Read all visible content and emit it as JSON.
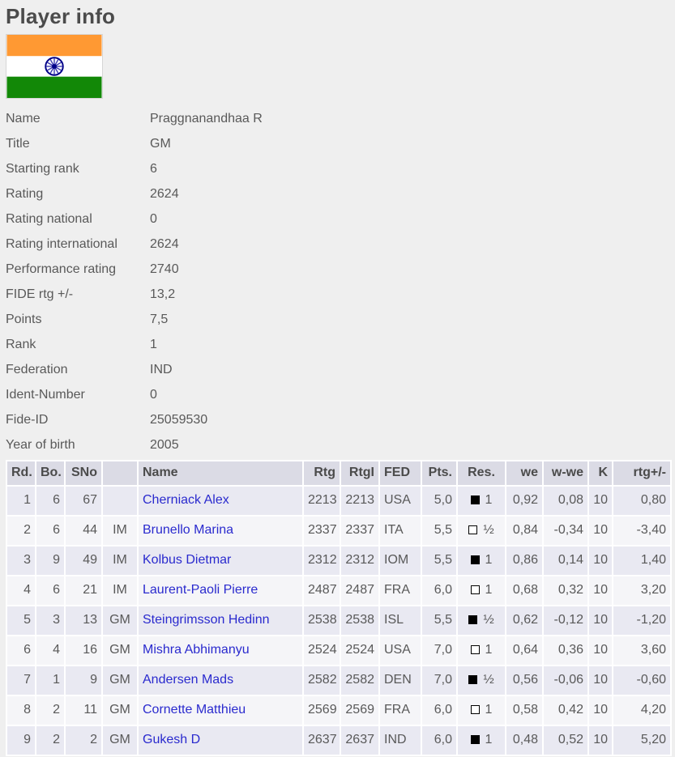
{
  "page": {
    "title": "Player info",
    "background": "#efefef",
    "heading_color": "#4b4b4b",
    "text_color": "#595959",
    "link_color": "#2a2ace",
    "table_header_bg": "#dbdbe5",
    "row_odd_bg": "#e9e9f2",
    "row_even_bg": "#f5f5f8"
  },
  "flag": {
    "name": "flag-of-india",
    "saffron": "#FF9933",
    "white": "#FFFFFF",
    "green": "#128807",
    "navy": "#000088"
  },
  "player": {
    "fields": [
      {
        "label": "Name",
        "value": "Praggnanandhaa R"
      },
      {
        "label": "Title",
        "value": "GM"
      },
      {
        "label": "Starting rank",
        "value": "6"
      },
      {
        "label": "Rating",
        "value": "2624"
      },
      {
        "label": "Rating national",
        "value": "0"
      },
      {
        "label": "Rating international",
        "value": "2624"
      },
      {
        "label": "Performance rating",
        "value": "2740"
      },
      {
        "label": "FIDE rtg +/-",
        "value": "13,2"
      },
      {
        "label": "Points",
        "value": "7,5"
      },
      {
        "label": "Rank",
        "value": "1"
      },
      {
        "label": "Federation",
        "value": "IND"
      },
      {
        "label": "Ident-Number",
        "value": "0"
      },
      {
        "label": "Fide-ID",
        "value": "25059530"
      },
      {
        "label": "Year of birth",
        "value": "2005"
      }
    ]
  },
  "results": {
    "columns": [
      "Rd.",
      "Bo.",
      "SNo",
      "",
      "Name",
      "Rtg",
      "RtgI",
      "FED",
      "Pts.",
      "Res.",
      "we",
      "w-we",
      "K",
      "rtg+/-"
    ],
    "rows": [
      {
        "rd": "1",
        "bo": "6",
        "sno": "67",
        "title": "",
        "name": "Cherniack Alex",
        "rtg": "2213",
        "rtgi": "2213",
        "fed": "USA",
        "pts": "5,0",
        "color": "black",
        "res": "1",
        "we": "0,92",
        "wwe": "0,08",
        "k": "10",
        "rtgpm": "0,80"
      },
      {
        "rd": "2",
        "bo": "6",
        "sno": "44",
        "title": "IM",
        "name": "Brunello Marina",
        "rtg": "2337",
        "rtgi": "2337",
        "fed": "ITA",
        "pts": "5,5",
        "color": "white",
        "res": "½",
        "we": "0,84",
        "wwe": "-0,34",
        "k": "10",
        "rtgpm": "-3,40"
      },
      {
        "rd": "3",
        "bo": "9",
        "sno": "49",
        "title": "IM",
        "name": "Kolbus Dietmar",
        "rtg": "2312",
        "rtgi": "2312",
        "fed": "IOM",
        "pts": "5,5",
        "color": "black",
        "res": "1",
        "we": "0,86",
        "wwe": "0,14",
        "k": "10",
        "rtgpm": "1,40"
      },
      {
        "rd": "4",
        "bo": "6",
        "sno": "21",
        "title": "IM",
        "name": "Laurent-Paoli Pierre",
        "rtg": "2487",
        "rtgi": "2487",
        "fed": "FRA",
        "pts": "6,0",
        "color": "white",
        "res": "1",
        "we": "0,68",
        "wwe": "0,32",
        "k": "10",
        "rtgpm": "3,20"
      },
      {
        "rd": "5",
        "bo": "3",
        "sno": "13",
        "title": "GM",
        "name": "Steingrimsson Hedinn",
        "rtg": "2538",
        "rtgi": "2538",
        "fed": "ISL",
        "pts": "5,5",
        "color": "black",
        "res": "½",
        "we": "0,62",
        "wwe": "-0,12",
        "k": "10",
        "rtgpm": "-1,20"
      },
      {
        "rd": "6",
        "bo": "4",
        "sno": "16",
        "title": "GM",
        "name": "Mishra Abhimanyu",
        "rtg": "2524",
        "rtgi": "2524",
        "fed": "USA",
        "pts": "7,0",
        "color": "white",
        "res": "1",
        "we": "0,64",
        "wwe": "0,36",
        "k": "10",
        "rtgpm": "3,60"
      },
      {
        "rd": "7",
        "bo": "1",
        "sno": "9",
        "title": "GM",
        "name": "Andersen Mads",
        "rtg": "2582",
        "rtgi": "2582",
        "fed": "DEN",
        "pts": "7,0",
        "color": "black",
        "res": "½",
        "we": "0,56",
        "wwe": "-0,06",
        "k": "10",
        "rtgpm": "-0,60"
      },
      {
        "rd": "8",
        "bo": "2",
        "sno": "11",
        "title": "GM",
        "name": "Cornette Matthieu",
        "rtg": "2569",
        "rtgi": "2569",
        "fed": "FRA",
        "pts": "6,0",
        "color": "white",
        "res": "1",
        "we": "0,58",
        "wwe": "0,42",
        "k": "10",
        "rtgpm": "4,20"
      },
      {
        "rd": "9",
        "bo": "2",
        "sno": "2",
        "title": "GM",
        "name": "Gukesh D",
        "rtg": "2637",
        "rtgi": "2637",
        "fed": "IND",
        "pts": "6,0",
        "color": "black",
        "res": "1",
        "we": "0,48",
        "wwe": "0,52",
        "k": "10",
        "rtgpm": "5,20"
      }
    ]
  }
}
